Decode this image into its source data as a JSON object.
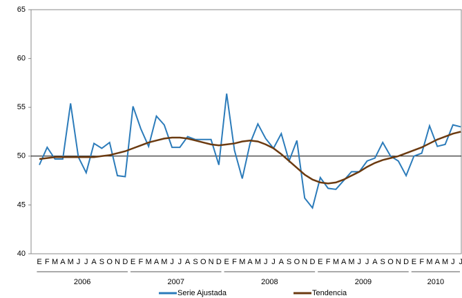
{
  "chart_data": {
    "type": "line",
    "categories": [
      "E",
      "F",
      "M",
      "A",
      "M",
      "J",
      "J",
      "A",
      "S",
      "O",
      "N",
      "D",
      "E",
      "F",
      "M",
      "A",
      "M",
      "J",
      "J",
      "A",
      "S",
      "O",
      "N",
      "D",
      "E",
      "F",
      "M",
      "A",
      "M",
      "J",
      "J",
      "A",
      "S",
      "O",
      "N",
      "D",
      "E",
      "F",
      "M",
      "A",
      "M",
      "J",
      "J",
      "A",
      "S",
      "O",
      "N",
      "D",
      "E",
      "F",
      "M",
      "A",
      "M",
      "J",
      "J"
    ],
    "years": [
      "2006",
      "2007",
      "2008",
      "2009",
      "2010"
    ],
    "series": [
      {
        "name": "Serie Ajustada",
        "color": "#2b7bba",
        "values": [
          49.1,
          50.9,
          49.7,
          49.7,
          55.4,
          49.9,
          48.3,
          51.3,
          50.8,
          51.4,
          48.0,
          47.9,
          55.1,
          52.8,
          51.0,
          54.1,
          53.2,
          50.9,
          50.9,
          52.0,
          51.7,
          51.7,
          51.7,
          49.1,
          56.4,
          50.6,
          47.7,
          51.3,
          53.3,
          51.8,
          50.8,
          52.3,
          49.5,
          51.6,
          45.7,
          44.7,
          47.8,
          46.7,
          46.6,
          47.5,
          48.4,
          48.4,
          49.5,
          49.8,
          51.4,
          50.0,
          49.5,
          48.0,
          50.0,
          50.3,
          53.1,
          51.0,
          51.2,
          53.2,
          53.0
        ]
      },
      {
        "name": "Tendencia",
        "color": "#6b3a10",
        "values": [
          49.7,
          49.8,
          49.9,
          49.9,
          49.9,
          49.9,
          49.9,
          49.9,
          50.0,
          50.1,
          50.3,
          50.5,
          50.8,
          51.1,
          51.4,
          51.6,
          51.8,
          51.9,
          51.9,
          51.8,
          51.6,
          51.4,
          51.2,
          51.1,
          51.2,
          51.3,
          51.5,
          51.6,
          51.5,
          51.2,
          50.8,
          50.2,
          49.5,
          48.8,
          48.1,
          47.6,
          47.3,
          47.2,
          47.3,
          47.6,
          48.0,
          48.4,
          48.9,
          49.3,
          49.6,
          49.8,
          50.0,
          50.3,
          50.6,
          50.9,
          51.3,
          51.7,
          52.0,
          52.3,
          52.5
        ]
      }
    ],
    "ylim": [
      40,
      65
    ],
    "yticks": [
      40,
      45,
      50,
      55,
      60,
      65
    ],
    "reference_line": 50,
    "grid": false
  }
}
